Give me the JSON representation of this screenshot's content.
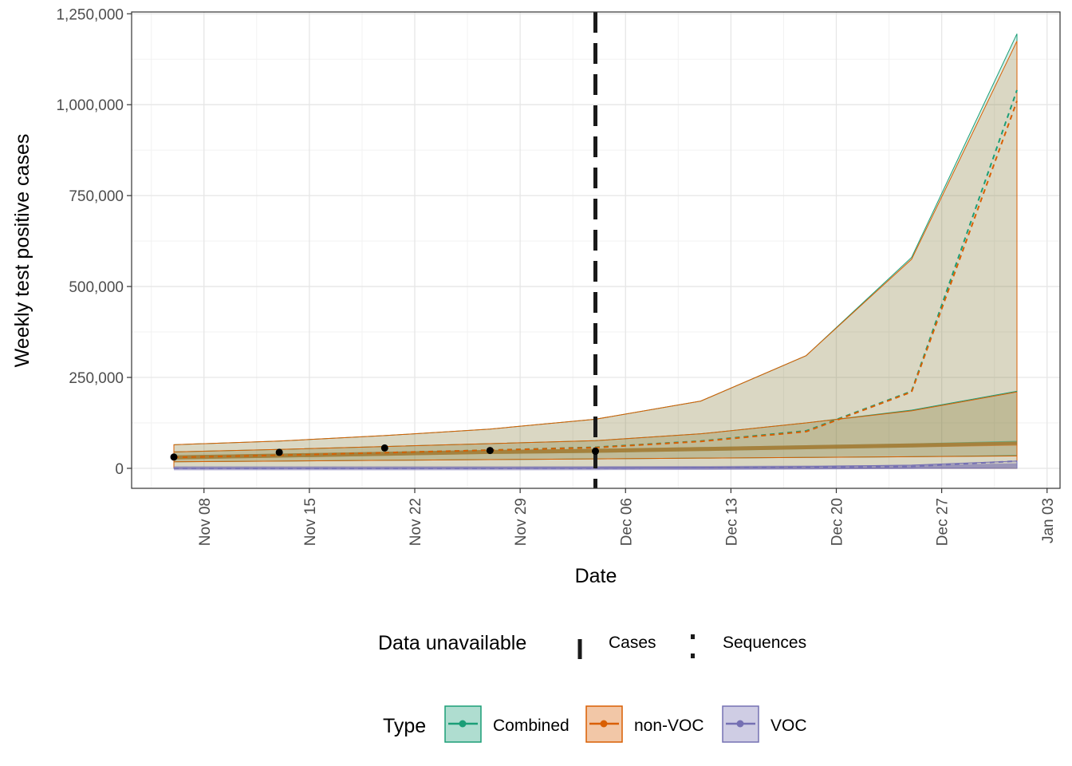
{
  "chart_data": {
    "type": "line",
    "xlabel": "Date",
    "ylabel": "Weekly test positive cases",
    "x_ticks": [
      "Nov 08",
      "Nov 15",
      "Nov 22",
      "Nov 29",
      "Dec 06",
      "Dec 13",
      "Dec 20",
      "Dec 27",
      "Jan 03"
    ],
    "y_ticks": [
      "0",
      "250,000",
      "500,000",
      "750,000",
      "1,000,000",
      "1,250,000"
    ],
    "ylim": [
      -55000,
      1255000
    ],
    "grid": true,
    "legend_position": "bottom",
    "cutoff_date": "Dec 04",
    "observed_cases": [
      {
        "x": "Nov 06",
        "y": 31000
      },
      {
        "x": "Nov 13",
        "y": 44000
      },
      {
        "x": "Nov 20",
        "y": 56000
      },
      {
        "x": "Nov 27",
        "y": 49000
      },
      {
        "x": "Dec 04",
        "y": 47000
      }
    ],
    "series": [
      {
        "name": "Combined",
        "color": "#1b9e77",
        "x": [
          "Nov 06",
          "Nov 13",
          "Nov 20",
          "Nov 27",
          "Dec 04",
          "Dec 11",
          "Dec 18",
          "Dec 25",
          "Jan 01"
        ],
        "median": [
          30000,
          35000,
          40000,
          45000,
          48000,
          53000,
          58000,
          63000,
          70000
        ],
        "upper_outer": [
          65000,
          75000,
          90000,
          108000,
          135000,
          185000,
          310000,
          580000,
          1195000
        ],
        "lower_outer": [
          0,
          0,
          0,
          0,
          0,
          0,
          0,
          0,
          0
        ],
        "upper_inner": [
          45000,
          52000,
          60000,
          68000,
          76000,
          95000,
          125000,
          160000,
          212000
        ],
        "lower_inner": [
          18000,
          20000,
          22000,
          24000,
          26000,
          28000,
          30000,
          32000,
          35000
        ],
        "forecast_mean": [
          30000,
          36000,
          43000,
          50000,
          58000,
          75000,
          103000,
          212000,
          1040000
        ]
      },
      {
        "name": "non-VOC",
        "color": "#d95f02",
        "x": [
          "Nov 06",
          "Nov 13",
          "Nov 20",
          "Nov 27",
          "Dec 04",
          "Dec 11",
          "Dec 18",
          "Dec 25",
          "Jan 01"
        ],
        "median": [
          30000,
          35000,
          40000,
          45000,
          48000,
          53000,
          58000,
          63000,
          68000
        ],
        "upper_outer": [
          65000,
          75000,
          90000,
          108000,
          135000,
          185000,
          310000,
          575000,
          1175000
        ],
        "lower_outer": [
          0,
          0,
          0,
          0,
          0,
          0,
          0,
          0,
          0
        ],
        "upper_inner": [
          45000,
          52000,
          60000,
          68000,
          76000,
          95000,
          125000,
          158000,
          210000
        ],
        "lower_inner": [
          18000,
          20000,
          22000,
          24000,
          26000,
          28000,
          30000,
          32000,
          34000
        ],
        "forecast_mean": [
          30000,
          36000,
          43000,
          50000,
          57000,
          74000,
          101000,
          210000,
          1010000
        ]
      },
      {
        "name": "VOC",
        "color": "#7570b3",
        "x": [
          "Nov 06",
          "Nov 13",
          "Nov 20",
          "Nov 27",
          "Dec 04",
          "Dec 11",
          "Dec 18",
          "Dec 25",
          "Jan 01"
        ],
        "median": [
          0,
          0,
          0,
          0,
          500,
          1000,
          2000,
          4000,
          8000
        ],
        "upper_outer": [
          1000,
          1000,
          1000,
          1500,
          2000,
          3000,
          5000,
          9000,
          20000
        ],
        "lower_outer": [
          0,
          0,
          0,
          0,
          0,
          0,
          0,
          0,
          0
        ],
        "forecast_mean": [
          0,
          0,
          0,
          200,
          500,
          1200,
          2500,
          5000,
          20000
        ]
      }
    ]
  },
  "legend": {
    "data_unavailable": {
      "title": "Data unavailable",
      "items": [
        {
          "label": "Cases",
          "style": "long-dash"
        },
        {
          "label": "Sequences",
          "style": "dotted"
        }
      ]
    },
    "type": {
      "title": "Type",
      "items": [
        {
          "label": "Combined",
          "color": "#1b9e77"
        },
        {
          "label": "non-VOC",
          "color": "#d95f02"
        },
        {
          "label": "VOC",
          "color": "#7570b3"
        }
      ]
    }
  }
}
